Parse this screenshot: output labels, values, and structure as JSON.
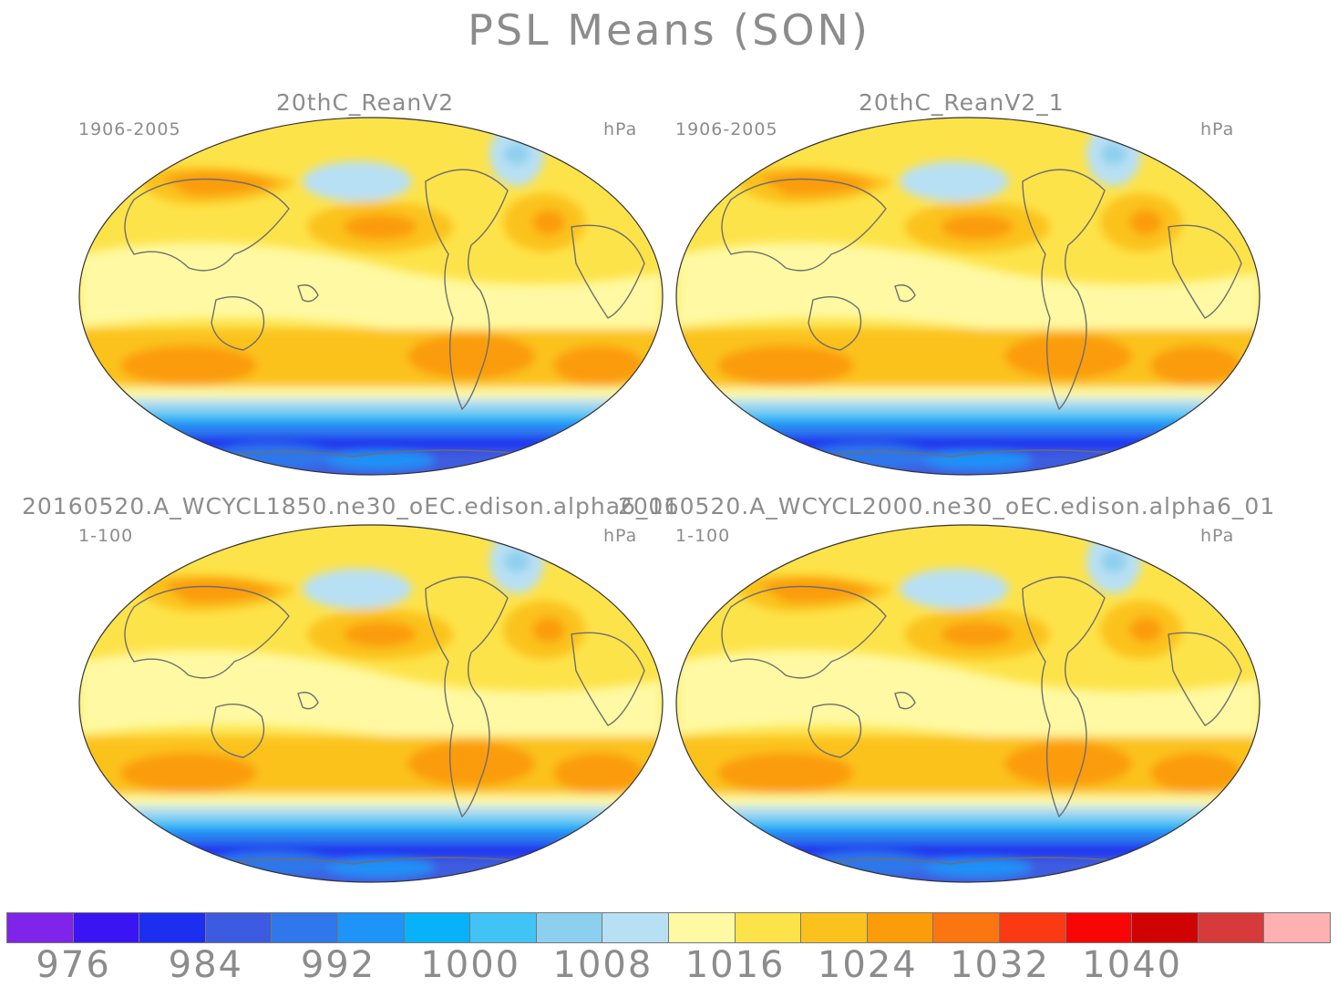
{
  "title": "PSL Means (SON)",
  "panels": [
    {
      "title": "20thC_ReanV2",
      "period": "1906-2005",
      "units": "hPa"
    },
    {
      "title": "20thC_ReanV2_1",
      "period": "1906-2005",
      "units": "hPa"
    },
    {
      "title": "20160520.A_WCYCL1850.ne30_oEC.edison.alpha6_01",
      "period": "1-100",
      "units": "hPa"
    },
    {
      "title": "20160520.A_WCYCL2000.ne30_oEC.edison.alpha6_01",
      "period": "1-100",
      "units": "hPa"
    }
  ],
  "colorbar": {
    "colors": [
      "#7f24e8",
      "#3a14f2",
      "#1c2ff0",
      "#3d5be0",
      "#2f77ea",
      "#1e93f8",
      "#07b2f8",
      "#41c3f6",
      "#8dcfee",
      "#b8e0f4",
      "#fef9a2",
      "#fde34a",
      "#fbc21e",
      "#fb9c0a",
      "#fb7510",
      "#fb3a14",
      "#f80606",
      "#d10202",
      "#d63a3a",
      "#ffb1b1"
    ],
    "labels": [
      "976",
      "984",
      "992",
      "1000",
      "1008",
      "1016",
      "1024",
      "1032",
      "1040"
    ]
  }
}
